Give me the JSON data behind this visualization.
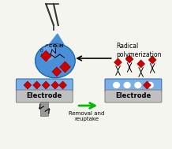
{
  "bg_color": "#f5f5f0",
  "drop_color": "#4a90d9",
  "drop_edge": "#2060a0",
  "electrode_top_color": "#7ab0e8",
  "electrode_body_color": "#c0c0c0",
  "electrode_text": "Electrode",
  "template_color": "#cc0000",
  "white_hole_color": "#ffffff",
  "arrow_color": "#00bb00",
  "text_radical": "Radical\npolymerization",
  "text_removal": "Removal and\nreuptake",
  "figsize": [
    2.18,
    1.89
  ],
  "dpi": 100
}
